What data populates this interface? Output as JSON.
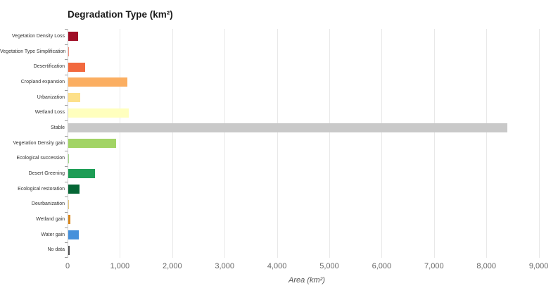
{
  "chart": {
    "title": "Degradation Type (km²)",
    "x_axis_title": "Area (km²)"
  },
  "chart_data": {
    "type": "bar",
    "orientation": "horizontal",
    "title": "Degradation Type (km²)",
    "xlabel": "Area (km²)",
    "ylabel": "",
    "xlim": [
      0,
      9000
    ],
    "xticks": [
      0,
      1000,
      2000,
      3000,
      4000,
      5000,
      6000,
      7000,
      8000,
      9000
    ],
    "grid": true,
    "legend": false,
    "categories": [
      "Vegetation Density Loss",
      "Vegetation Type Simplification",
      "Desertification",
      "Cropland expansion",
      "Urbanization",
      "Wetland Loss",
      "Stable",
      "Vegetation Density gain",
      "Ecological succession",
      "Desert Greening",
      "Ecological restoration",
      "Deurbanization",
      "Wetland gain",
      "Water gain",
      "No data"
    ],
    "values": [
      190,
      25,
      330,
      1130,
      230,
      1160,
      8400,
      920,
      20,
      520,
      225,
      12,
      45,
      210,
      28
    ],
    "colors": [
      "#a00e26",
      "#f28e7c",
      "#f2693e",
      "#fbae61",
      "#fde08a",
      "#ffffbe",
      "#c9c9c9",
      "#a2d465",
      "#a3d88a",
      "#1d9d55",
      "#056635",
      "#e7c87e",
      "#d8861c",
      "#4590db",
      "#4d4d4f"
    ],
    "axis_colors": {
      "gridline": "#e8e8e8",
      "axis_line": "#cccccc",
      "tick": "#9a9a9a",
      "tick_label": "#666666",
      "category_label": "#333333",
      "title": "#1a1a1a"
    }
  }
}
